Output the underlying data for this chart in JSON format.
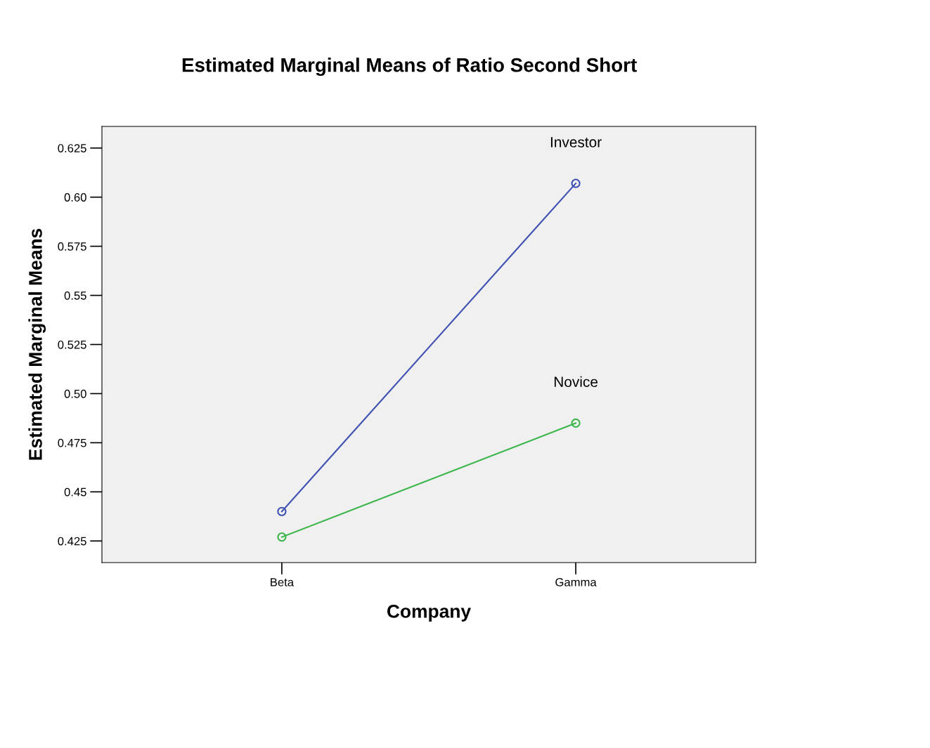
{
  "chart_data": {
    "type": "line",
    "title": "Estimated Marginal Means of Ratio Second Short",
    "xlabel": "Company",
    "ylabel": "Estimated Marginal Means",
    "categories": [
      "Beta",
      "Gamma"
    ],
    "series": [
      {
        "name": "Investor",
        "color": "#3f51b1",
        "values": [
          0.44,
          0.607
        ]
      },
      {
        "name": "Novice",
        "color": "#3cb64b",
        "values": [
          0.427,
          0.485
        ]
      }
    ],
    "ylim": [
      0.414,
      0.636
    ],
    "yticks": [
      0.625,
      {
        "value": 0.6,
        "label": "0.60"
      },
      0.575,
      {
        "value": 0.55,
        "label": "0.55"
      },
      0.525,
      {
        "value": 0.5,
        "label": "0.50"
      },
      0.475,
      {
        "value": 0.45,
        "label": "0.45"
      },
      0.425
    ],
    "marker": "circle",
    "line_style": "solid",
    "grid": false,
    "legend": false
  }
}
